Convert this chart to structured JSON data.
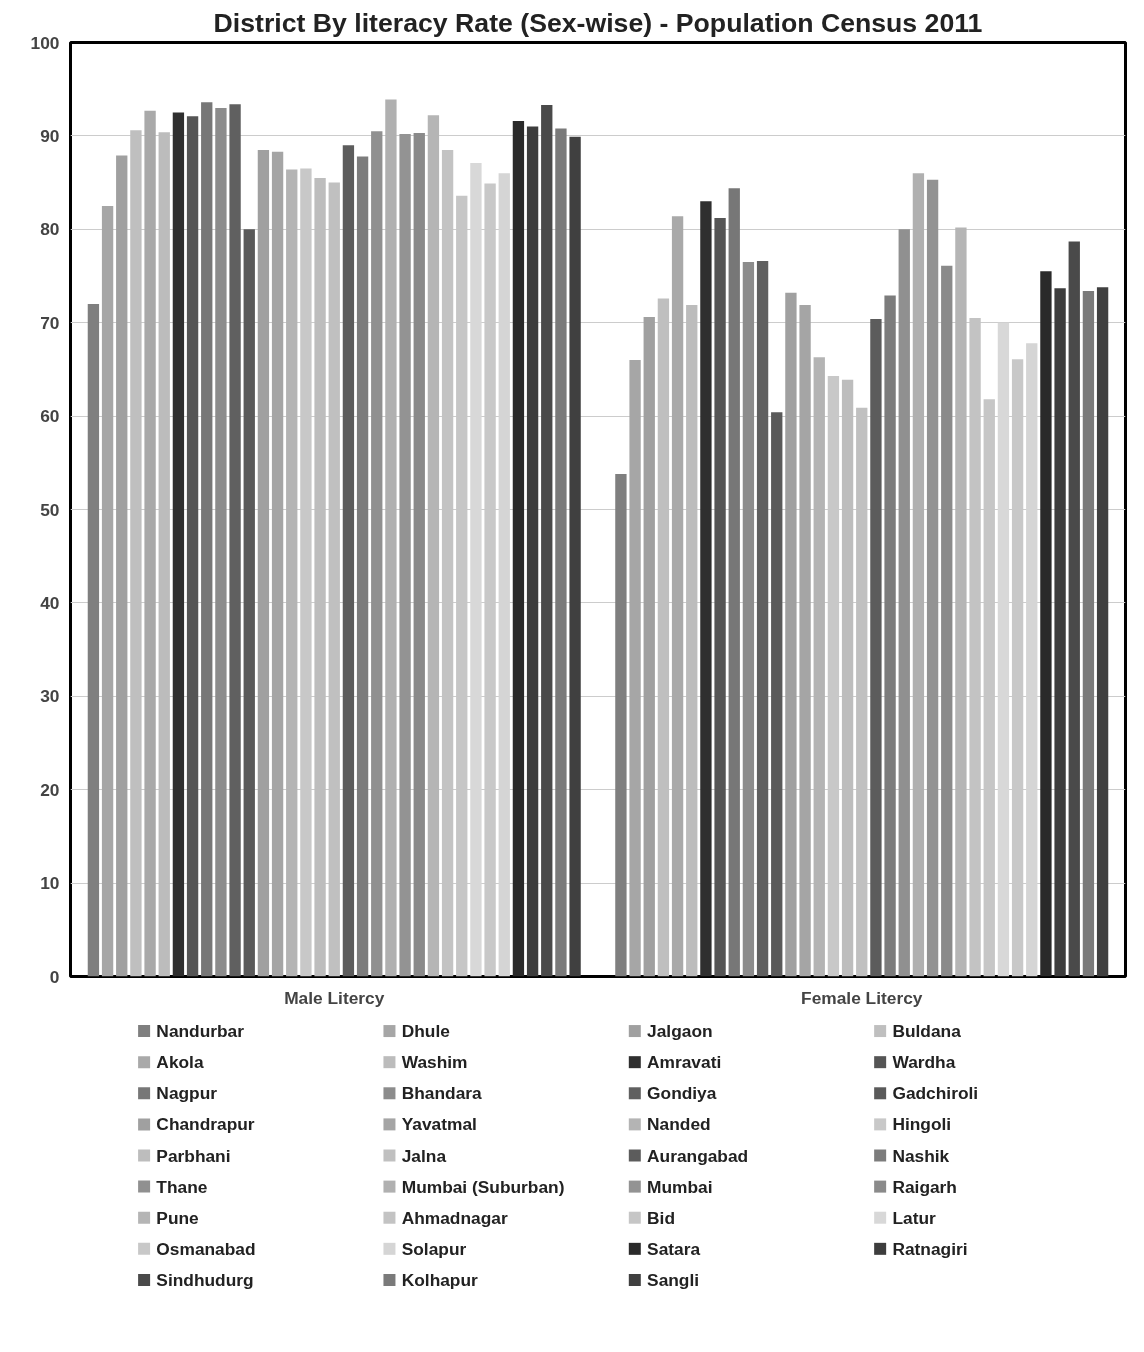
{
  "chart_data": {
    "type": "bar",
    "title": "District By literacy Rate (Sex-wise) - Population Census 2011",
    "categories": [
      "Male Litercy",
      "Female Litercy"
    ],
    "ylim": [
      0,
      100
    ],
    "yticks": [
      0,
      10,
      20,
      30,
      40,
      50,
      60,
      70,
      80,
      90,
      100
    ],
    "grid": "y",
    "legend": "bottom",
    "series": [
      {
        "name": "Nandurbar",
        "color": "#7f7f7f",
        "values": [
          72.0,
          53.8
        ]
      },
      {
        "name": "Dhule",
        "color": "#a6a6a6",
        "values": [
          82.5,
          66.0
        ]
      },
      {
        "name": "Jalgaon",
        "color": "#a0a0a0",
        "values": [
          87.9,
          70.6
        ]
      },
      {
        "name": "Buldana",
        "color": "#bfbfbf",
        "values": [
          90.6,
          72.6
        ]
      },
      {
        "name": "Akola",
        "color": "#a9a9a9",
        "values": [
          92.7,
          81.4
        ]
      },
      {
        "name": "Washim",
        "color": "#bcbcbc",
        "values": [
          90.4,
          71.9
        ]
      },
      {
        "name": "Amravati",
        "color": "#2f2f2f",
        "values": [
          92.5,
          83.0
        ]
      },
      {
        "name": "Wardha",
        "color": "#555555",
        "values": [
          92.1,
          81.2
        ]
      },
      {
        "name": "Nagpur",
        "color": "#777777",
        "values": [
          93.6,
          84.4
        ]
      },
      {
        "name": "Bhandara",
        "color": "#8c8c8c",
        "values": [
          93.0,
          76.5
        ]
      },
      {
        "name": "Gondiya",
        "color": "#606060",
        "values": [
          93.4,
          76.6
        ]
      },
      {
        "name": "Gadchiroli",
        "color": "#5a5a5a",
        "values": [
          80.0,
          60.4
        ]
      },
      {
        "name": "Chandrapur",
        "color": "#a0a0a0",
        "values": [
          88.5,
          73.2
        ]
      },
      {
        "name": "Yavatmal",
        "color": "#a5a5a5",
        "values": [
          88.3,
          71.9
        ]
      },
      {
        "name": "Nanded",
        "color": "#b4b4b4",
        "values": [
          86.4,
          66.3
        ]
      },
      {
        "name": "Hingoli",
        "color": "#c8c8c8",
        "values": [
          86.5,
          64.3
        ]
      },
      {
        "name": "Parbhani",
        "color": "#bdbdbd",
        "values": [
          85.5,
          63.9
        ]
      },
      {
        "name": "Jalna",
        "color": "#c0c0c0",
        "values": [
          85.0,
          60.9
        ]
      },
      {
        "name": "Aurangabad",
        "color": "#5c5c5c",
        "values": [
          89.0,
          70.4
        ]
      },
      {
        "name": "Nashik",
        "color": "#7c7c7c",
        "values": [
          87.8,
          72.9
        ]
      },
      {
        "name": "Thane",
        "color": "#909090",
        "values": [
          90.5,
          80.0
        ]
      },
      {
        "name": "Mumbai (Suburban)",
        "color": "#b0b0b0",
        "values": [
          93.9,
          86.0
        ]
      },
      {
        "name": "Mumbai",
        "color": "#939393",
        "values": [
          90.2,
          85.3
        ]
      },
      {
        "name": "Raigarh",
        "color": "#8a8a8a",
        "values": [
          90.3,
          76.1
        ]
      },
      {
        "name": "Pune",
        "color": "#b5b5b5",
        "values": [
          92.2,
          80.2
        ]
      },
      {
        "name": "Ahmadnagar",
        "color": "#c3c3c3",
        "values": [
          88.5,
          70.5
        ]
      },
      {
        "name": "Bid",
        "color": "#c6c6c6",
        "values": [
          83.6,
          61.8
        ]
      },
      {
        "name": "Latur",
        "color": "#d8d8d8",
        "values": [
          87.1,
          70.0
        ]
      },
      {
        "name": "Osmanabad",
        "color": "#c8c8c8",
        "values": [
          84.9,
          66.1
        ]
      },
      {
        "name": "Solapur",
        "color": "#d5d5d5",
        "values": [
          86.0,
          67.8
        ]
      },
      {
        "name": "Satara",
        "color": "#2a2a2a",
        "values": [
          91.6,
          75.5
        ]
      },
      {
        "name": "Ratnagiri",
        "color": "#3d3d3d",
        "values": [
          91.0,
          73.7
        ]
      },
      {
        "name": "Sindhudurg",
        "color": "#4a4a4a",
        "values": [
          93.3,
          78.7
        ]
      },
      {
        "name": "Kolhapur",
        "color": "#7a7a7a",
        "values": [
          90.8,
          73.4
        ]
      },
      {
        "name": "Sangli",
        "color": "#404040",
        "values": [
          89.9,
          73.8
        ]
      }
    ]
  }
}
